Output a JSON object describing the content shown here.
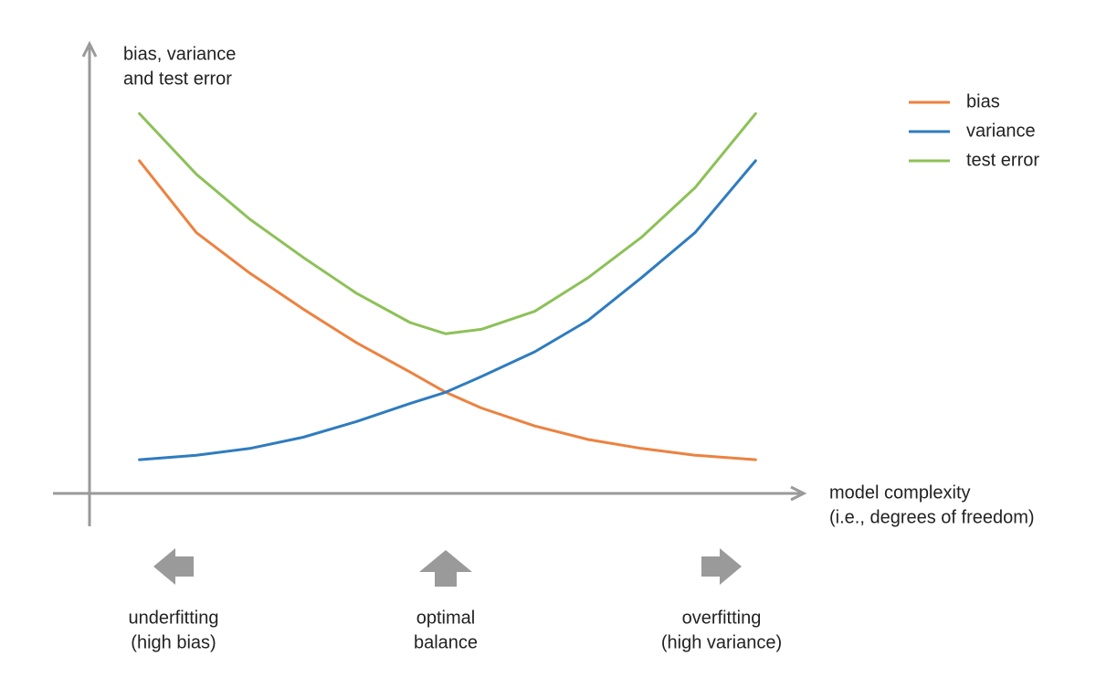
{
  "chart_data": {
    "type": "line",
    "ylabel": [
      "bias, variance",
      "and test error"
    ],
    "xlabel": [
      "model complexity",
      "(i.e., degrees of freedom)"
    ],
    "xlim": [
      0,
      10
    ],
    "ylim": [
      0,
      10
    ],
    "grid": false,
    "legend": "upper right",
    "x": [
      0.7,
      1.5,
      2.25,
      3,
      3.75,
      4.5,
      5,
      5.5,
      6.25,
      7,
      7.75,
      8.5,
      9.35
    ],
    "series": [
      {
        "name": "bias",
        "color": "#ec8240",
        "values": [
          7.4,
          5.8,
          4.9,
          4.1,
          3.35,
          2.7,
          2.25,
          1.9,
          1.5,
          1.2,
          1.0,
          0.85,
          0.75
        ]
      },
      {
        "name": "variance",
        "color": "#2f7cbf",
        "values": [
          0.75,
          0.85,
          1.0,
          1.25,
          1.6,
          2.0,
          2.25,
          2.6,
          3.15,
          3.85,
          4.8,
          5.8,
          7.4
        ]
      },
      {
        "name": "test error",
        "color": "#8dc158",
        "values": [
          8.45,
          7.1,
          6.1,
          5.25,
          4.45,
          3.8,
          3.55,
          3.65,
          4.05,
          4.8,
          5.7,
          6.8,
          8.45
        ]
      }
    ],
    "annotations": [
      {
        "text": [
          "underfitting",
          "(high bias)"
        ],
        "arrow": "left"
      },
      {
        "text": [
          "optimal",
          "balance"
        ],
        "arrow": "up"
      },
      {
        "text": [
          "overfitting",
          "(high variance)"
        ],
        "arrow": "right"
      }
    ]
  }
}
